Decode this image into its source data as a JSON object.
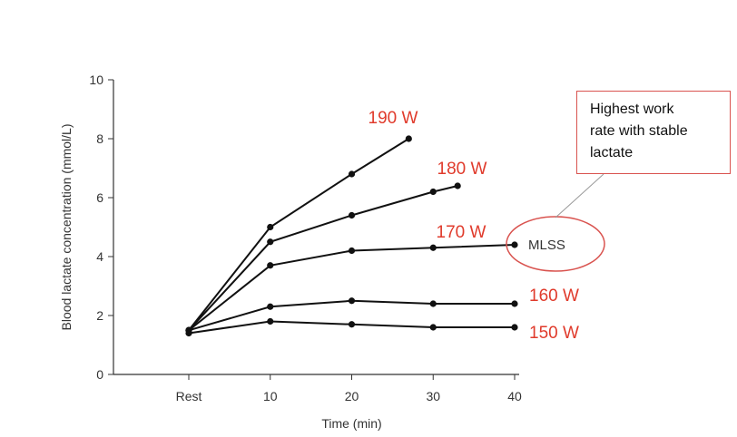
{
  "chart_data": {
    "type": "line",
    "xlabel": "Time (min)",
    "ylabel": "Blood lactate concentration (mmol/L)",
    "categories": [
      "Rest",
      "10",
      "20",
      "30",
      "40"
    ],
    "ylim": [
      0,
      10
    ],
    "yticks": [
      0,
      2,
      4,
      6,
      8,
      10
    ],
    "grid": false,
    "colors": {
      "line": "#111111",
      "label": "#e03b2c",
      "callout": "#d9534f"
    },
    "series": [
      {
        "name": "190 W",
        "x": [
          0,
          10,
          20,
          27
        ],
        "values": [
          1.5,
          5.0,
          6.8,
          8.0
        ]
      },
      {
        "name": "180 W",
        "x": [
          0,
          10,
          20,
          30,
          33
        ],
        "values": [
          1.5,
          4.5,
          5.4,
          6.2,
          6.4
        ]
      },
      {
        "name": "170 W",
        "x": [
          0,
          10,
          20,
          30,
          40
        ],
        "values": [
          1.5,
          3.7,
          4.2,
          4.3,
          4.4
        ]
      },
      {
        "name": "160 W",
        "x": [
          0,
          10,
          20,
          30,
          40
        ],
        "values": [
          1.5,
          2.3,
          2.5,
          2.4,
          2.4
        ]
      },
      {
        "name": "150 W",
        "x": [
          0,
          10,
          20,
          30,
          40
        ],
        "values": [
          1.4,
          1.8,
          1.7,
          1.6,
          1.6
        ]
      }
    ],
    "annotations": {
      "mlss_label": "MLSS",
      "callout_lines": [
        "Highest work",
        "rate with stable",
        "lactate"
      ]
    }
  }
}
